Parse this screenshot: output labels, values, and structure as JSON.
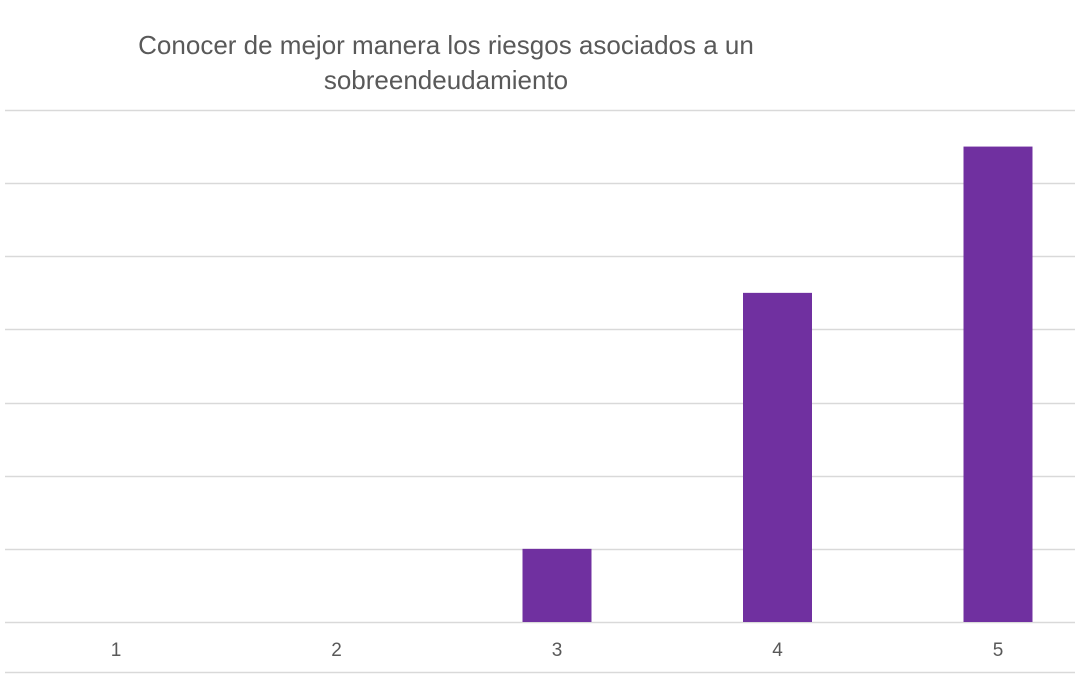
{
  "chart_data": {
    "type": "bar",
    "title": "Conocer de mejor manera los riesgos asociados a un\nsobreendeudamiento",
    "categories": [
      "1",
      "2",
      "3",
      "4",
      "5"
    ],
    "values": [
      0,
      0,
      1,
      4.5,
      6.5
    ],
    "ylim": [
      0,
      7
    ],
    "grid": true,
    "legend": "none",
    "bar_color": "#7030a0",
    "grid_color": "#d9d9d9"
  }
}
